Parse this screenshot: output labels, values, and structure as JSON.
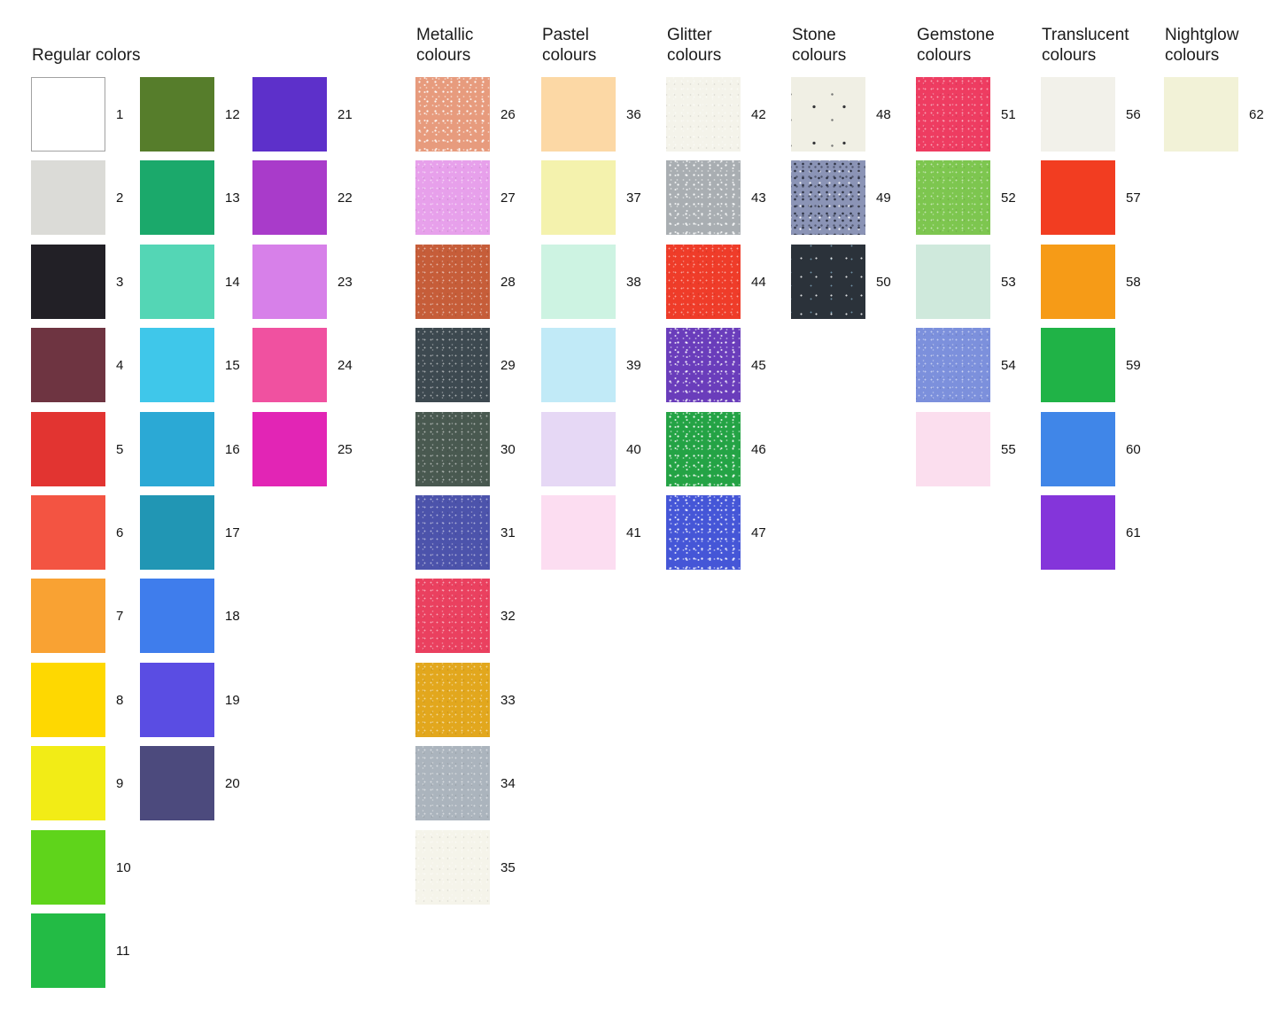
{
  "chart_data": {
    "type": "table",
    "description": "Numbered colour swatch chart grouped by material finish",
    "groups": [
      {
        "name": "Regular colors",
        "header_lines": [
          "Regular colors"
        ],
        "columns": [
          [
            {
              "num": 1,
              "color": "#ffffff",
              "texture": "flat",
              "border": true
            },
            {
              "num": 2,
              "color": "#dbdbd7",
              "texture": "flat"
            },
            {
              "num": 3,
              "color": "#222026",
              "texture": "flat"
            },
            {
              "num": 4,
              "color": "#6e3441",
              "texture": "flat"
            },
            {
              "num": 5,
              "color": "#e23431",
              "texture": "flat"
            },
            {
              "num": 6,
              "color": "#f35442",
              "texture": "flat"
            },
            {
              "num": 7,
              "color": "#f9a233",
              "texture": "flat"
            },
            {
              "num": 8,
              "color": "#fed801",
              "texture": "flat"
            },
            {
              "num": 9,
              "color": "#f2ec16",
              "texture": "flat"
            },
            {
              "num": 10,
              "color": "#5fd41b",
              "texture": "flat"
            },
            {
              "num": 11,
              "color": "#23bb45",
              "texture": "flat"
            }
          ],
          [
            {
              "num": 12,
              "color": "#567d2b",
              "texture": "flat"
            },
            {
              "num": 13,
              "color": "#1ba96b",
              "texture": "flat"
            },
            {
              "num": 14,
              "color": "#54d6b5",
              "texture": "flat"
            },
            {
              "num": 15,
              "color": "#3fc7ea",
              "texture": "flat"
            },
            {
              "num": 16,
              "color": "#2ba9d5",
              "texture": "flat"
            },
            {
              "num": 17,
              "color": "#2196b4",
              "texture": "flat"
            },
            {
              "num": 18,
              "color": "#3f7dec",
              "texture": "flat"
            },
            {
              "num": 19,
              "color": "#5a4de3",
              "texture": "flat"
            },
            {
              "num": 20,
              "color": "#4c4a7d",
              "texture": "flat"
            }
          ],
          [
            {
              "num": 21,
              "color": "#5d30ca",
              "texture": "flat"
            },
            {
              "num": 22,
              "color": "#a93bca",
              "texture": "flat"
            },
            {
              "num": 23,
              "color": "#d780e9",
              "texture": "flat"
            },
            {
              "num": 24,
              "color": "#f051a0",
              "texture": "flat"
            },
            {
              "num": 25,
              "color": "#e225b5",
              "texture": "flat"
            }
          ]
        ]
      },
      {
        "name": "Metallic colours",
        "header_lines": [
          "Metallic",
          "colours"
        ],
        "columns": [
          [
            {
              "num": 26,
              "color": "#e79b7d",
              "texture": "glitter"
            },
            {
              "num": 27,
              "color": "#e7a0eb",
              "texture": "sparkle"
            },
            {
              "num": 28,
              "color": "#c65d39",
              "texture": "sparkle"
            },
            {
              "num": 29,
              "color": "#3d4950",
              "texture": "sparkle"
            },
            {
              "num": 30,
              "color": "#495950",
              "texture": "sparkle"
            },
            {
              "num": 31,
              "color": "#4c53ab",
              "texture": "sparkle"
            },
            {
              "num": 32,
              "color": "#ea405f",
              "texture": "sparkle"
            },
            {
              "num": 33,
              "color": "#e2a71d",
              "texture": "sparkle"
            },
            {
              "num": 34,
              "color": "#abb4bd",
              "texture": "sparkle"
            },
            {
              "num": 35,
              "color": "#f5f4ea",
              "texture": "sparkle"
            }
          ]
        ]
      },
      {
        "name": "Pastel colours",
        "header_lines": [
          "Pastel",
          "colours"
        ],
        "columns": [
          [
            {
              "num": 36,
              "color": "#fcd8a5",
              "texture": "flat"
            },
            {
              "num": 37,
              "color": "#f4f2ad",
              "texture": "flat"
            },
            {
              "num": 38,
              "color": "#cdf3e2",
              "texture": "flat"
            },
            {
              "num": 39,
              "color": "#c1eaf7",
              "texture": "flat"
            },
            {
              "num": 40,
              "color": "#e6d8f5",
              "texture": "flat"
            },
            {
              "num": 41,
              "color": "#fcddf1",
              "texture": "flat"
            }
          ]
        ]
      },
      {
        "name": "Glitter colours",
        "header_lines": [
          "Glitter",
          "colours"
        ],
        "columns": [
          [
            {
              "num": 42,
              "color": "#f4f3ea",
              "texture": "sparkle"
            },
            {
              "num": 43,
              "color": "#a9aeb2",
              "texture": "glitter"
            },
            {
              "num": 44,
              "color": "#ef3c29",
              "texture": "sparkle"
            },
            {
              "num": 45,
              "color": "#6a3dbb",
              "texture": "glitter"
            },
            {
              "num": 46,
              "color": "#24a345",
              "texture": "glitter"
            },
            {
              "num": 47,
              "color": "#4556d7",
              "texture": "glitter"
            }
          ]
        ]
      },
      {
        "name": "Stone colours",
        "header_lines": [
          "Stone",
          "colours"
        ],
        "columns": [
          [
            {
              "num": 48,
              "color": "#f0efe4",
              "texture": "speckle-dark"
            },
            {
              "num": 49,
              "color": "#8b94b6",
              "texture": "stone"
            },
            {
              "num": 50,
              "color": "#2b323a",
              "texture": "glitter-dark"
            }
          ]
        ]
      },
      {
        "name": "Gemstone colours",
        "header_lines": [
          "Gemstone",
          "colours"
        ],
        "columns": [
          [
            {
              "num": 51,
              "color": "#ee3c61",
              "texture": "sparkle"
            },
            {
              "num": 52,
              "color": "#7dc64f",
              "texture": "sparkle"
            },
            {
              "num": 53,
              "color": "#cfe9dc",
              "texture": "flat"
            },
            {
              "num": 54,
              "color": "#7c90dc",
              "texture": "sparkle"
            },
            {
              "num": 55,
              "color": "#fbdeee",
              "texture": "flat"
            }
          ]
        ]
      },
      {
        "name": "Translucent colours",
        "header_lines": [
          "Translucent",
          "colours"
        ],
        "columns": [
          [
            {
              "num": 56,
              "color": "#f2f1ea",
              "texture": "flat"
            },
            {
              "num": 57,
              "color": "#f23d21",
              "texture": "flat"
            },
            {
              "num": 58,
              "color": "#f69b17",
              "texture": "flat"
            },
            {
              "num": 59,
              "color": "#20b347",
              "texture": "flat"
            },
            {
              "num": 60,
              "color": "#4086e8",
              "texture": "flat"
            },
            {
              "num": 61,
              "color": "#8435da",
              "texture": "flat"
            }
          ]
        ]
      },
      {
        "name": "Nightglow colours",
        "header_lines": [
          "Nightglow",
          "colours"
        ],
        "columns": [
          [
            {
              "num": 62,
              "color": "#f2f2d7",
              "texture": "flat"
            }
          ]
        ]
      }
    ]
  }
}
